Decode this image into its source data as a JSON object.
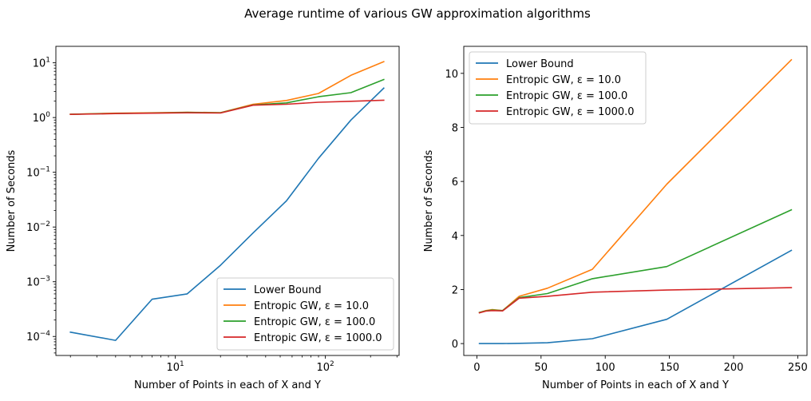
{
  "suptitle": "Average runtime of various GW approximation algorithms",
  "colors": {
    "lower_bound": "#1f77b4",
    "eps_10": "#ff7f0e",
    "eps_100": "#2ca02c",
    "eps_1000": "#d62728"
  },
  "chart_data": [
    {
      "type": "line",
      "xlabel": "Number of Points in each of X and Y",
      "ylabel": "Number of Seconds",
      "xscale": "log",
      "yscale": "log",
      "xlim": [
        1.6,
        310
      ],
      "ylim": [
        4.5e-05,
        20
      ],
      "xticks": [
        {
          "value": 10,
          "base": "10",
          "exp": "1"
        },
        {
          "value": 100,
          "base": "10",
          "exp": "2"
        }
      ],
      "yticks": [
        {
          "value": 0.0001,
          "base": "10",
          "exp": "−4"
        },
        {
          "value": 0.001,
          "base": "10",
          "exp": "−3"
        },
        {
          "value": 0.01,
          "base": "10",
          "exp": "−2"
        },
        {
          "value": 0.1,
          "base": "10",
          "exp": "−1"
        },
        {
          "value": 1,
          "base": "10",
          "exp": "0"
        },
        {
          "value": 10,
          "base": "10",
          "exp": "1"
        }
      ],
      "legend_position": "lower-right",
      "series": [
        {
          "name": "Lower Bound",
          "color_key": "lower_bound",
          "x": [
            2,
            4,
            7,
            12,
            20,
            33,
            55,
            90,
            148,
            245
          ],
          "y": [
            0.00012,
            8.5e-05,
            0.00048,
            0.0006,
            0.002,
            0.0078,
            0.03,
            0.18,
            0.9,
            3.45
          ]
        },
        {
          "name": "Entropic GW, ε = 10.0",
          "color_key": "eps_10",
          "x": [
            2,
            4,
            7,
            12,
            20,
            33,
            55,
            90,
            148,
            245
          ],
          "y": [
            1.15,
            1.2,
            1.22,
            1.25,
            1.23,
            1.75,
            2.05,
            2.75,
            5.9,
            10.5
          ]
        },
        {
          "name": "Entropic GW, ε = 100.0",
          "color_key": "eps_100",
          "x": [
            2,
            4,
            7,
            12,
            20,
            33,
            55,
            90,
            148,
            245
          ],
          "y": [
            1.15,
            1.19,
            1.21,
            1.24,
            1.22,
            1.7,
            1.85,
            2.4,
            2.85,
            4.95
          ]
        },
        {
          "name": "Entropic GW, ε = 1000.0",
          "color_key": "eps_1000",
          "x": [
            2,
            4,
            7,
            12,
            20,
            33,
            55,
            90,
            148,
            245
          ],
          "y": [
            1.14,
            1.18,
            1.2,
            1.22,
            1.21,
            1.68,
            1.75,
            1.9,
            1.98,
            2.07
          ]
        }
      ]
    },
    {
      "type": "line",
      "xlabel": "Number of Points in each of X and Y",
      "ylabel": "Number of Seconds",
      "xscale": "linear",
      "yscale": "linear",
      "xlim": [
        -10.2,
        257.2
      ],
      "ylim": [
        -0.44,
        11.0
      ],
      "xticks": [
        {
          "value": 0,
          "label": "0"
        },
        {
          "value": 50,
          "label": "50"
        },
        {
          "value": 100,
          "label": "100"
        },
        {
          "value": 150,
          "label": "150"
        },
        {
          "value": 200,
          "label": "200"
        },
        {
          "value": 250,
          "label": "250"
        }
      ],
      "yticks": [
        {
          "value": 0,
          "label": "0"
        },
        {
          "value": 2,
          "label": "2"
        },
        {
          "value": 4,
          "label": "4"
        },
        {
          "value": 6,
          "label": "6"
        },
        {
          "value": 8,
          "label": "8"
        },
        {
          "value": 10,
          "label": "10"
        }
      ],
      "legend_position": "upper-left",
      "series": [
        {
          "name": "Lower Bound",
          "color_key": "lower_bound",
          "x": [
            2,
            7,
            12,
            20,
            33,
            55,
            90,
            148,
            245
          ],
          "y": [
            0.0,
            0.0,
            0.0,
            0.0,
            0.01,
            0.03,
            0.18,
            0.9,
            3.45
          ]
        },
        {
          "name": "Entropic GW, ε = 10.0",
          "color_key": "eps_10",
          "x": [
            2,
            7,
            12,
            20,
            33,
            55,
            90,
            148,
            245
          ],
          "y": [
            1.15,
            1.22,
            1.26,
            1.22,
            1.75,
            2.05,
            2.75,
            5.9,
            10.5
          ]
        },
        {
          "name": "Entropic GW, ε = 100.0",
          "color_key": "eps_100",
          "x": [
            2,
            7,
            12,
            20,
            33,
            55,
            90,
            148,
            245
          ],
          "y": [
            1.15,
            1.21,
            1.24,
            1.22,
            1.7,
            1.85,
            2.4,
            2.85,
            4.95
          ]
        },
        {
          "name": "Entropic GW, ε = 1000.0",
          "color_key": "eps_1000",
          "x": [
            2,
            7,
            12,
            20,
            33,
            55,
            90,
            148,
            245
          ],
          "y": [
            1.14,
            1.2,
            1.22,
            1.21,
            1.68,
            1.75,
            1.9,
            1.98,
            2.07
          ]
        }
      ]
    }
  ]
}
